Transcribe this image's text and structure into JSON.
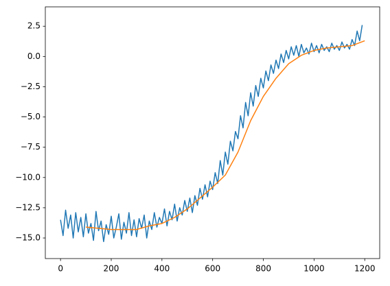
{
  "chart_data": {
    "type": "line",
    "xlim": [
      -60,
      1259
    ],
    "ylim": [
      -16.7,
      4.1
    ],
    "xticks": [
      0,
      200,
      400,
      600,
      800,
      1000,
      1200
    ],
    "yticks": [
      {
        "value": -15,
        "label": "−15.0"
      },
      {
        "value": -12.5,
        "label": "−12.5"
      },
      {
        "value": -10,
        "label": "−10.0"
      },
      {
        "value": -7.5,
        "label": "−7.5"
      },
      {
        "value": -5,
        "label": "−5.0"
      },
      {
        "value": -2.5,
        "label": "−2.5"
      },
      {
        "value": 0,
        "label": "0.0"
      },
      2.5
    ],
    "series": [
      {
        "color": "#1f77b4",
        "x": [
          0,
          10,
          20,
          30,
          40,
          50,
          60,
          70,
          80,
          90,
          100,
          110,
          120,
          130,
          140,
          150,
          160,
          170,
          180,
          190,
          200,
          210,
          220,
          230,
          240,
          250,
          260,
          270,
          280,
          290,
          300,
          310,
          320,
          330,
          340,
          350,
          360,
          370,
          380,
          390,
          400,
          410,
          420,
          430,
          440,
          450,
          460,
          470,
          480,
          490,
          500,
          510,
          520,
          530,
          540,
          550,
          560,
          570,
          580,
          590,
          600,
          610,
          620,
          630,
          640,
          650,
          660,
          670,
          680,
          690,
          700,
          710,
          720,
          730,
          740,
          750,
          760,
          770,
          780,
          790,
          800,
          810,
          820,
          830,
          840,
          850,
          860,
          870,
          880,
          890,
          900,
          910,
          920,
          930,
          940,
          950,
          960,
          970,
          980,
          990,
          1000,
          1010,
          1020,
          1030,
          1040,
          1050,
          1060,
          1070,
          1080,
          1090,
          1100,
          1110,
          1120,
          1130,
          1140,
          1150,
          1160,
          1170,
          1180,
          1190
        ],
        "values": [
          -13.5,
          -14.8,
          -12.7,
          -14.2,
          -13.1,
          -15.0,
          -12.9,
          -14.5,
          -13.3,
          -14.9,
          -13.0,
          -14.6,
          -13.8,
          -15.2,
          -12.8,
          -14.4,
          -13.6,
          -15.3,
          -13.9,
          -14.7,
          -13.2,
          -15.0,
          -14.1,
          -13.0,
          -15.1,
          -13.7,
          -14.6,
          -12.9,
          -14.8,
          -13.5,
          -14.9,
          -13.4,
          -14.2,
          -13.1,
          -15.0,
          -13.6,
          -14.3,
          -12.9,
          -14.1,
          -13.3,
          -13.8,
          -12.6,
          -14.0,
          -12.8,
          -13.5,
          -12.2,
          -13.6,
          -12.5,
          -13.1,
          -11.9,
          -12.8,
          -11.7,
          -12.9,
          -11.5,
          -12.3,
          -10.9,
          -11.8,
          -10.6,
          -11.6,
          -10.3,
          -11.0,
          -9.6,
          -10.5,
          -8.6,
          -9.8,
          -7.9,
          -8.9,
          -7.0,
          -7.8,
          -6.2,
          -6.8,
          -4.9,
          -5.9,
          -3.8,
          -4.9,
          -3.0,
          -4.1,
          -2.4,
          -3.3,
          -1.8,
          -2.6,
          -1.2,
          -2.0,
          -0.7,
          -1.4,
          -0.3,
          -1.0,
          0.2,
          -0.5,
          0.5,
          -0.2,
          0.8,
          0.1,
          0.9,
          0.0,
          1.0,
          0.3,
          0.7,
          0.2,
          1.1,
          0.4,
          0.9,
          0.3,
          1.0,
          0.5,
          0.8,
          0.4,
          1.1,
          0.6,
          0.9,
          0.5,
          1.2,
          0.7,
          1.0,
          0.6,
          1.4,
          0.9,
          2.1,
          1.3,
          2.6
        ]
      },
      {
        "color": "#ff7f0e",
        "x": [
          100,
          150,
          200,
          250,
          300,
          350,
          400,
          450,
          500,
          550,
          600,
          650,
          700,
          750,
          800,
          850,
          900,
          950,
          1000,
          1050,
          1100,
          1150,
          1200
        ],
        "values": [
          -14.1,
          -14.2,
          -14.3,
          -14.3,
          -14.3,
          -14.0,
          -13.8,
          -13.3,
          -12.6,
          -11.7,
          -10.8,
          -9.8,
          -7.9,
          -5.3,
          -3.3,
          -1.8,
          -0.6,
          0.1,
          0.5,
          0.7,
          0.8,
          0.9,
          1.3
        ]
      }
    ]
  }
}
